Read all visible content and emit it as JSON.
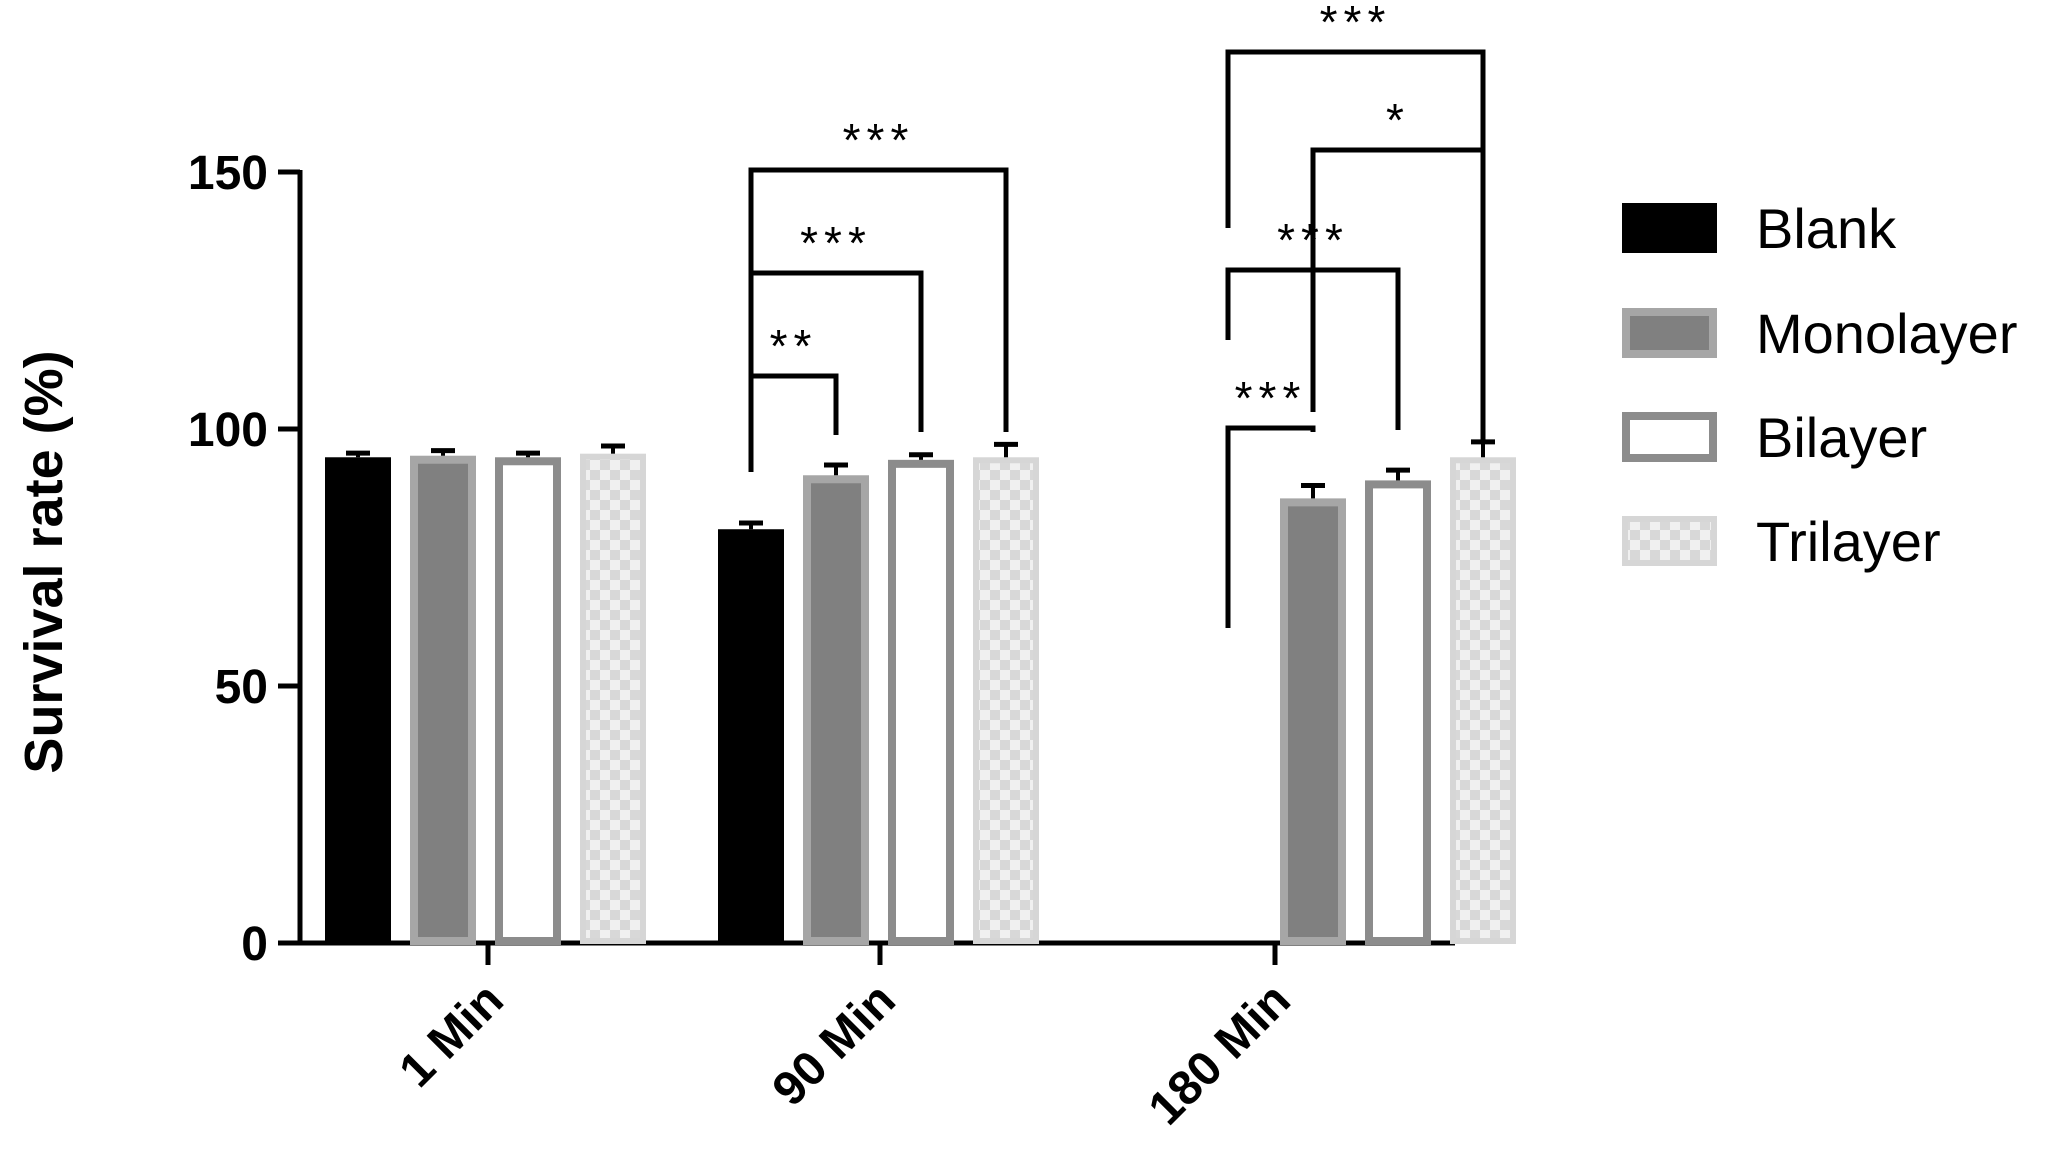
{
  "chart_data": {
    "type": "bar",
    "categories": [
      "1 Min",
      "90 Min",
      "180 Min"
    ],
    "ylabel": "Survival rate (%)",
    "xlabel": "",
    "ylim": [
      0,
      150
    ],
    "yticks": [
      0,
      50,
      100,
      150
    ],
    "grid": false,
    "legend_position": "right",
    "series": [
      {
        "name": "Blank",
        "values": [
          94.5,
          80.5,
          null
        ],
        "errors": [
          0.8,
          1.2,
          null
        ],
        "color": "#000000",
        "style": "solid"
      },
      {
        "name": "Monolayer",
        "values": [
          94.8,
          91.0,
          86.5
        ],
        "errors": [
          1.0,
          2.0,
          2.5
        ],
        "color": "#808080",
        "style": "filled-outlined"
      },
      {
        "name": "Bilayer",
        "values": [
          94.5,
          94.0,
          90.0
        ],
        "errors": [
          0.8,
          1.0,
          2.0
        ],
        "color": "#8c8c8c",
        "style": "outlined"
      },
      {
        "name": "Trilayer",
        "values": [
          95.2,
          94.5,
          94.5
        ],
        "errors": [
          1.5,
          2.5,
          3.0
        ],
        "color": "#d6d6d6",
        "style": "checkered"
      }
    ],
    "significance": [
      {
        "category": 1,
        "from": 0,
        "to": 1,
        "label": "**"
      },
      {
        "category": 1,
        "from": 0,
        "to": 2,
        "label": "***"
      },
      {
        "category": 1,
        "from": 0,
        "to": 3,
        "label": "***"
      },
      {
        "category": 2,
        "from": 0,
        "to": 1,
        "label": "***"
      },
      {
        "category": 2,
        "from": 0,
        "to": 2,
        "label": "***"
      },
      {
        "category": 2,
        "from": 1,
        "to": 3,
        "label": "*"
      },
      {
        "category": 2,
        "from": 0,
        "to": 3,
        "label": "***"
      }
    ]
  }
}
